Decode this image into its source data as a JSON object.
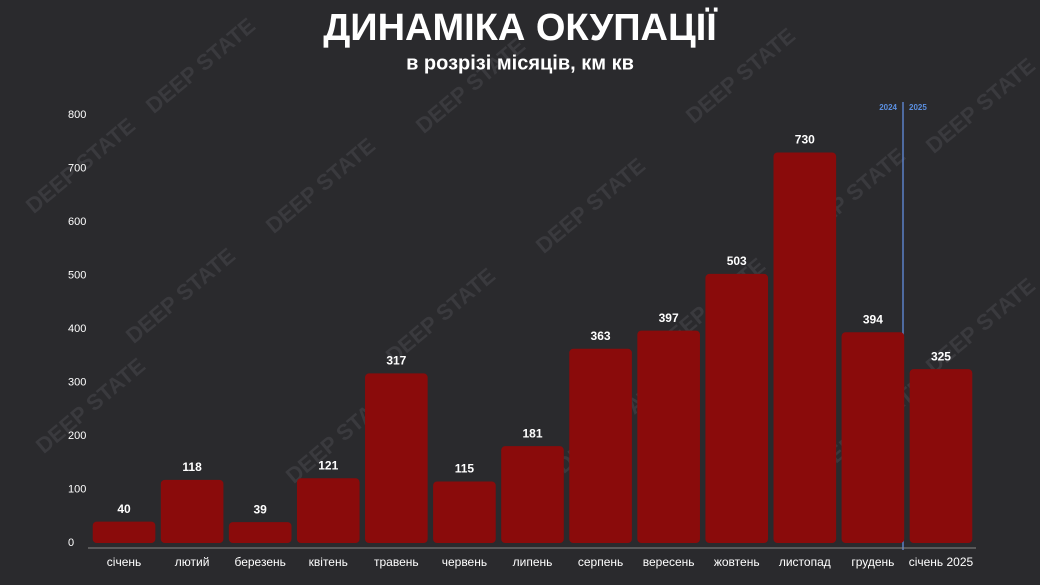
{
  "chart_data": {
    "type": "bar",
    "title": "ДИНАМІКА ОКУПАЦІЇ",
    "subtitle": "в розрізі місяців, км кв",
    "categories": [
      "січень",
      "лютий",
      "березень",
      "квітень",
      "травень",
      "червень",
      "липень",
      "серпень",
      "вересень",
      "жовтень",
      "листопад",
      "грудень",
      "січень 2025"
    ],
    "values": [
      40,
      118,
      39,
      121,
      317,
      115,
      181,
      363,
      397,
      503,
      730,
      394,
      325
    ],
    "color": "#8a0b0b",
    "ylim": [
      0,
      800
    ],
    "yticks": [
      0,
      100,
      200,
      300,
      400,
      500,
      600,
      700,
      800
    ],
    "grid": false,
    "divider_labels": [
      "2024",
      "2025"
    ],
    "watermark": "DEEP STATE"
  }
}
